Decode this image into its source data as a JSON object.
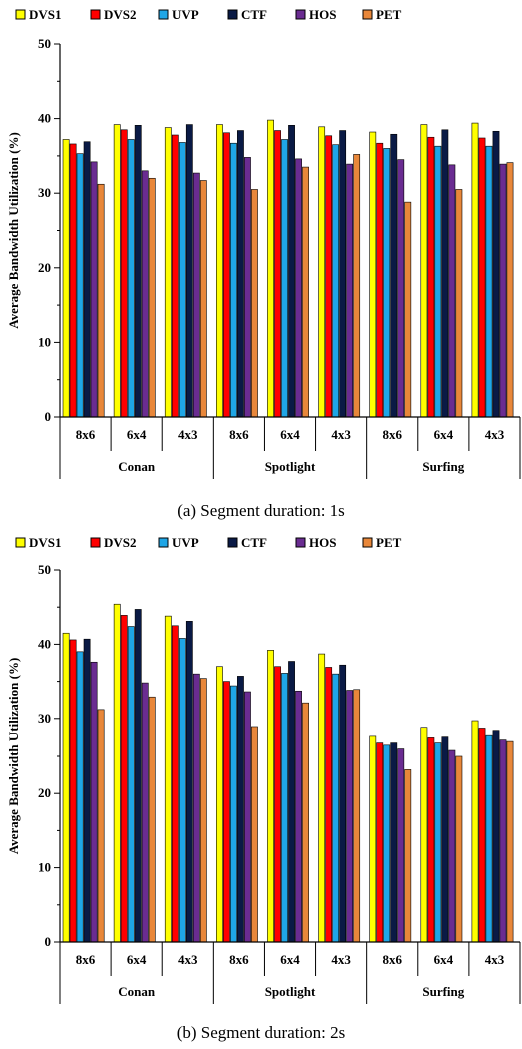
{
  "legend": [
    {
      "name": "DVS1",
      "color": "#ffff00"
    },
    {
      "name": "DVS2",
      "color": "#ff0000"
    },
    {
      "name": "UVP",
      "color": "#1fa6e6"
    },
    {
      "name": "CTF",
      "color": "#0a1a45"
    },
    {
      "name": "HOS",
      "color": "#6a2c91"
    },
    {
      "name": "PET",
      "color": "#e8873a"
    }
  ],
  "chart_data": [
    {
      "type": "bar",
      "caption": "(a) Segment duration: 1s",
      "ylabel": "Average Bandwidth Utilization (%)",
      "ylim": [
        0,
        50
      ],
      "yticks": [
        0,
        10,
        20,
        30,
        40,
        50
      ],
      "groups": [
        "Conan",
        "Spotlight",
        "Surfing"
      ],
      "categories": [
        "8x6",
        "6x4",
        "4x3",
        "8x6",
        "6x4",
        "4x3",
        "8x6",
        "6x4",
        "4x3"
      ],
      "series": [
        {
          "name": "DVS1",
          "values": [
            37.2,
            39.2,
            38.8,
            39.2,
            39.8,
            38.9,
            38.2,
            39.2,
            39.4
          ]
        },
        {
          "name": "DVS2",
          "values": [
            36.6,
            38.5,
            37.8,
            38.1,
            38.4,
            37.7,
            36.7,
            37.5,
            37.4
          ]
        },
        {
          "name": "UVP",
          "values": [
            35.3,
            37.2,
            36.8,
            36.7,
            37.2,
            36.5,
            36.0,
            36.3,
            36.3
          ]
        },
        {
          "name": "CTF",
          "values": [
            36.9,
            39.1,
            39.2,
            38.4,
            39.1,
            38.4,
            37.9,
            38.5,
            38.3
          ]
        },
        {
          "name": "HOS",
          "values": [
            34.2,
            33.0,
            32.7,
            34.8,
            34.6,
            33.9,
            34.5,
            33.8,
            33.9
          ]
        },
        {
          "name": "PET",
          "values": [
            31.2,
            32.0,
            31.7,
            30.5,
            33.5,
            35.2,
            28.8,
            30.5,
            34.1
          ]
        }
      ]
    },
    {
      "type": "bar",
      "caption": "(b) Segment duration: 2s",
      "ylabel": "Average Bandwidth Utilization (%)",
      "ylim": [
        0,
        50
      ],
      "yticks": [
        0,
        10,
        20,
        30,
        40,
        50
      ],
      "groups": [
        "Conan",
        "Spotlight",
        "Surfing"
      ],
      "categories": [
        "8x6",
        "6x4",
        "4x3",
        "8x6",
        "6x4",
        "4x3",
        "8x6",
        "6x4",
        "4x3"
      ],
      "series": [
        {
          "name": "DVS1",
          "values": [
            41.5,
            45.4,
            43.8,
            37.0,
            39.2,
            38.7,
            27.7,
            28.8,
            29.7
          ]
        },
        {
          "name": "DVS2",
          "values": [
            40.6,
            43.9,
            42.5,
            35.0,
            37.0,
            36.9,
            26.8,
            27.5,
            28.7
          ]
        },
        {
          "name": "UVP",
          "values": [
            39.0,
            42.4,
            40.8,
            34.4,
            36.1,
            36.0,
            26.5,
            26.8,
            27.8
          ]
        },
        {
          "name": "CTF",
          "values": [
            40.7,
            44.7,
            43.1,
            35.7,
            37.7,
            37.2,
            26.8,
            27.6,
            28.4
          ]
        },
        {
          "name": "HOS",
          "values": [
            37.6,
            34.8,
            36.0,
            33.6,
            33.7,
            33.8,
            26.0,
            25.8,
            27.2
          ]
        },
        {
          "name": "PET",
          "values": [
            31.2,
            32.9,
            35.4,
            28.9,
            32.1,
            33.9,
            23.2,
            25.0,
            27.0
          ]
        }
      ]
    }
  ]
}
